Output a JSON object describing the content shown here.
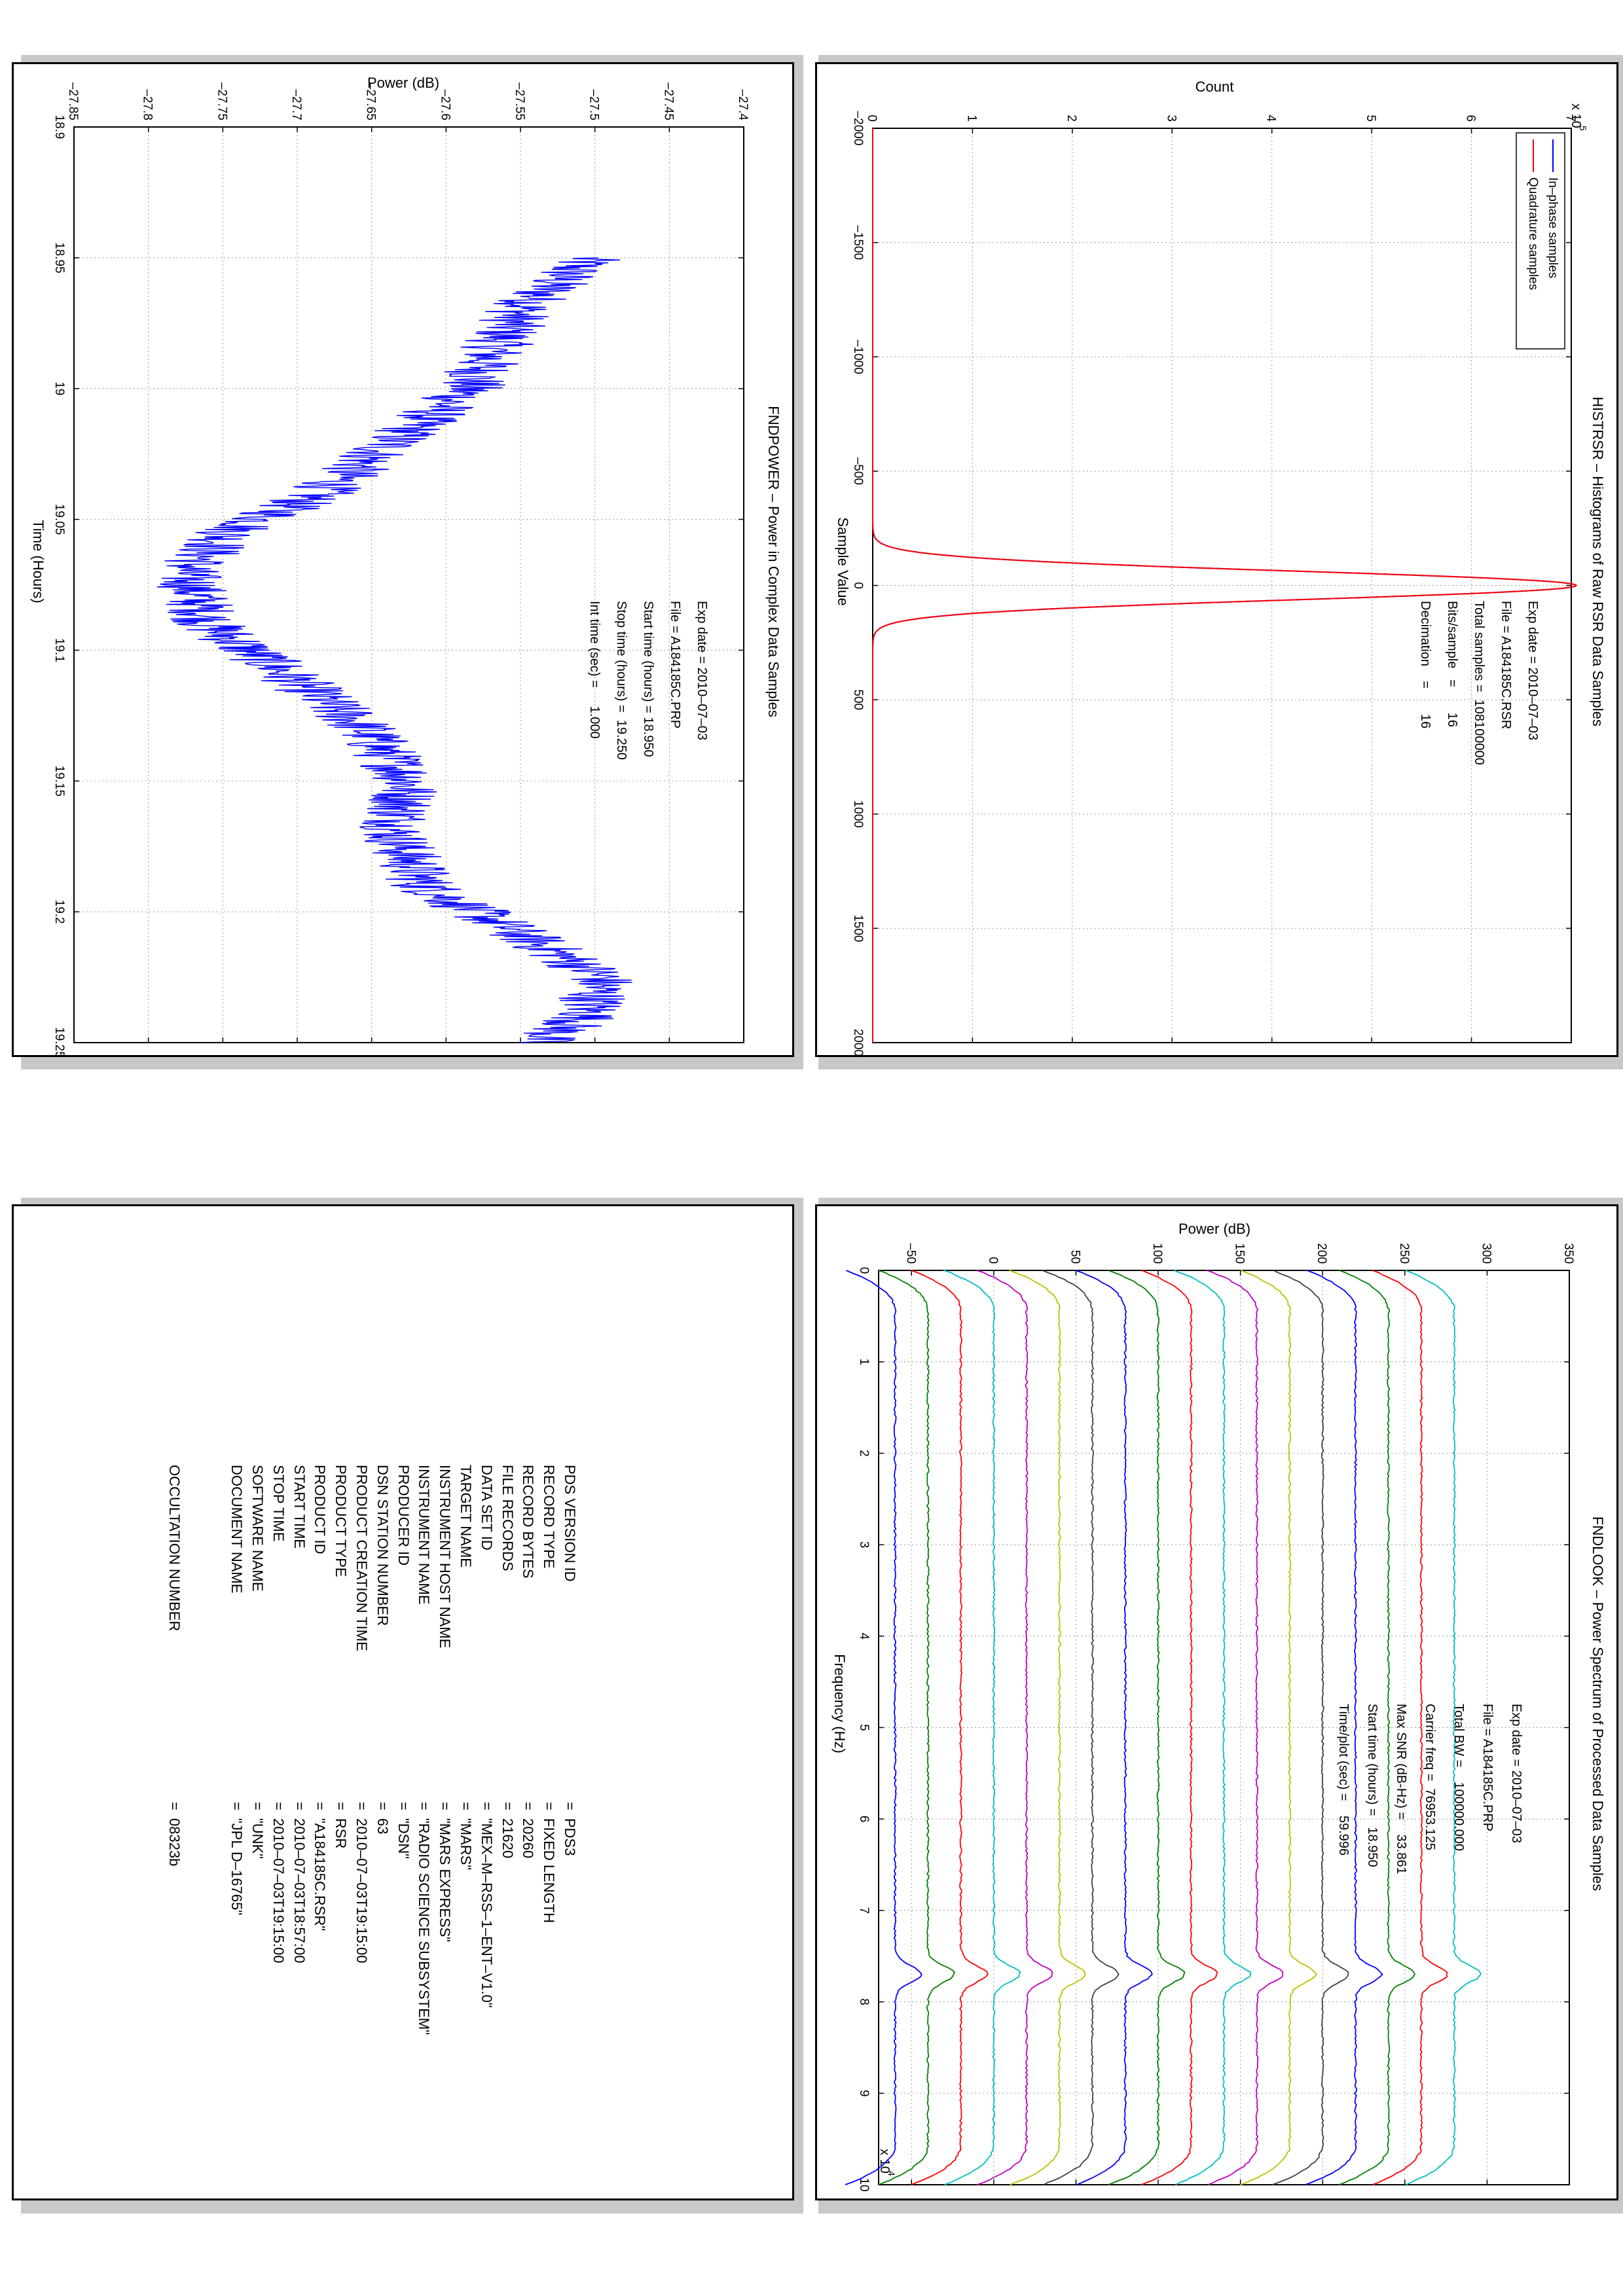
{
  "chart_data": [
    {
      "type": "line",
      "title": "HISTRSR – Histograms of Raw RSR Data Samples",
      "xlabel": "Sample Value",
      "ylabel": "Count",
      "y_exponent_label": "x 10",
      "y_exponent_power": "5",
      "xlim": [
        -2000,
        2000
      ],
      "ylim": [
        0,
        7
      ],
      "x_ticks": [
        "–2000",
        "–1500",
        "–1000",
        "–500",
        "0",
        "500",
        "1000",
        "1500",
        "2000"
      ],
      "y_ticks": [
        "0",
        "1",
        "2",
        "3",
        "4",
        "5",
        "6",
        "7"
      ],
      "grid": true,
      "legend_placement": "top-left",
      "series": [
        {
          "name": "In–phase samples",
          "color": "#0000ff",
          "peak_x": 0,
          "peak_y": 7.05,
          "sigma": 62
        },
        {
          "name": "Quadrature samples",
          "color": "#ff0000",
          "peak_x": 0,
          "peak_y": 7.05,
          "sigma": 62
        }
      ],
      "annotations": [
        "Exp date = 2010–07–03",
        "File = A184185C.RSR",
        "Total samples =  108100000",
        "Bits/sample   =       16",
        "Decimation    =       16"
      ]
    },
    {
      "type": "line",
      "title": "FNDPOWER – Power in Complex Data Samples",
      "xlabel": "Time (Hours)",
      "ylabel": "Power (dB)",
      "xlim": [
        18.9,
        19.25
      ],
      "ylim": [
        -27.85,
        -27.4
      ],
      "x_ticks": [
        "18.9",
        "18.95",
        "19",
        "19.05",
        "19.1",
        "19.15",
        "19.2",
        "19.25"
      ],
      "y_ticks": [
        "–27.85",
        "–27.8",
        "–27.75",
        "–27.7",
        "–27.65",
        "–27.6",
        "–27.55",
        "–27.5",
        "–27.45",
        "–27.4"
      ],
      "grid": true,
      "color": "#0000ff",
      "trend": {
        "x": [
          18.95,
          18.97,
          19.0,
          19.02,
          19.04,
          19.055,
          19.07,
          19.09,
          19.11,
          19.13,
          19.15,
          19.17,
          19.19,
          19.21,
          19.225,
          19.24,
          19.25
        ],
        "y": [
          -27.505,
          -27.55,
          -27.585,
          -27.635,
          -27.685,
          -27.745,
          -27.775,
          -27.76,
          -27.705,
          -27.655,
          -27.625,
          -27.635,
          -27.615,
          -27.545,
          -27.495,
          -27.505,
          -27.54
        ]
      },
      "noise_amplitude_db": 0.03,
      "annotations": [
        "Exp date = 2010–07–03",
        "File = A184185C.PRP",
        "Start time (hours) = 18.950",
        "Stop time (hours) =  19.250",
        "Int time (sec) =     1.000"
      ]
    },
    {
      "type": "line",
      "title": "FNDLOOK – Power Spectrum of Processed Data Samples",
      "xlabel": "Frequency (Hz)",
      "ylabel": "Power (dB)",
      "x_exponent_label": "x 10",
      "x_exponent_power": "4",
      "xlim": [
        0,
        100000
      ],
      "ylim": [
        -70,
        350
      ],
      "x_ticks": [
        "0",
        "1",
        "2",
        "3",
        "4",
        "5",
        "6",
        "7",
        "8",
        "9",
        "10"
      ],
      "y_ticks": [
        "–50",
        "0",
        "50",
        "100",
        "150",
        "200",
        "250",
        "300",
        "350"
      ],
      "grid": true,
      "carrier_hz": 76953,
      "trace_offsets_db": [
        -60,
        -40,
        -20,
        0,
        20,
        40,
        60,
        80,
        100,
        120,
        140,
        160,
        180,
        200,
        220,
        240,
        260,
        280
      ],
      "trace_colors": [
        "#0000ff",
        "#008000",
        "#ff0000",
        "#00bfbf",
        "#bf00bf",
        "#bfbf00",
        "#404040",
        "#0000ff",
        "#008000",
        "#ff0000",
        "#00bfbf",
        "#bf00bf",
        "#bfbf00",
        "#404040",
        "#0000ff",
        "#008000",
        "#ff0000",
        "#00bfbf"
      ],
      "annotations": [
        "Exp date = 2010–07–03",
        "File = A184185C.PRP",
        "Total BW =    100000.000",
        "Carrier freq =  76953.125",
        "Max SNR (dB-Hz) =    33.861",
        "Start time (hours) =   18.950",
        "Time/plot (sec) =    59.996"
      ]
    }
  ],
  "pds_label": {
    "keys": [
      "PDS VERSION ID",
      "RECORD TYPE",
      "RECORD BYTES",
      "FILE RECORDS",
      "DATA SET ID",
      "TARGET NAME",
      "INSTRUMENT HOST NAME",
      "INSTRUMENT NAME",
      "PRODUCER ID",
      "DSN STATION NUMBER",
      "PRODUCT CREATION TIME",
      "PRODUCT TYPE",
      "PRODUCT ID",
      "START TIME",
      "STOP TIME",
      "SOFTWARE NAME",
      "DOCUMENT NAME",
      "",
      "",
      "OCCULTATION NUMBER"
    ],
    "equals": [
      "=",
      "=",
      "=",
      "=",
      "=",
      "=",
      "=",
      "=",
      "=",
      "=",
      "=",
      "=",
      "=",
      "=",
      "=",
      "=",
      "=",
      "",
      "",
      "="
    ],
    "values": [
      "PDS3",
      "FIXED LENGTH",
      "20260",
      "21620",
      "\"MEX–M–RSS–1–ENT–V1.0\"",
      "\"MARS\"",
      "\"MARS EXPRESS\"",
      "\"RADIO SCIENCE SUBSYSTEM\"",
      "\"DSN\"",
      "63",
      "2010–07–03T19:15:00",
      "RSR",
      "\"A184185C.RSR\"",
      "2010–07–03T18:57:00",
      "2010–07–03T19:15:00",
      "\"UNK\"",
      "\"JPL D–16765\"",
      "",
      "",
      "08323b"
    ]
  }
}
